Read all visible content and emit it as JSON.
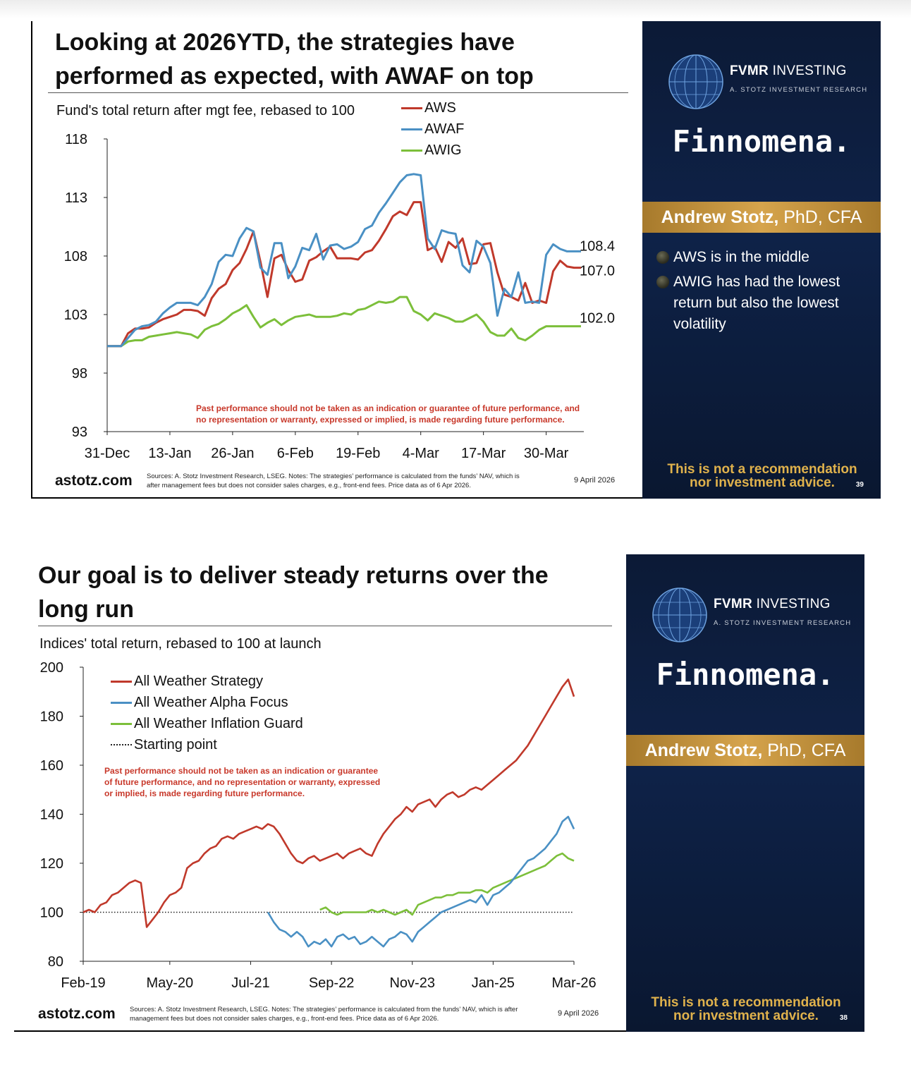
{
  "slides": [
    {
      "title_line1": "Looking at 2026YTD, the strategies have",
      "title_line2": "performed as expected, with AWAF on top",
      "subtitle": "Fund's total return after mgt fee, rebased to 100",
      "legend": [
        "AWS",
        "AWAF",
        "AWIG"
      ],
      "end_labels": [
        "108.4",
        "107.0",
        "102.0"
      ],
      "disclaimer_line1": "Past performance should not be taken as an indication or guarantee of future performance, and",
      "disclaimer_line2": "no representation or warranty, expressed or implied, is made regarding future performance.",
      "brand": "astotz.com",
      "sources_line1": "Sources: A. Stotz Investment Research, LSEG. Notes: The strategies’ performance is calculated from the funds’ NAV, which is",
      "sources_line2": "after management fees but does not consider sales charges, e.g., front-end fees. Price data as of 6 Apr 2026.",
      "date": "9 April 2026",
      "panel": {
        "logo_bold": "FVMR",
        "logo_light": "INVESTING",
        "logo_sub": "A. STOTZ INVESTMENT RESEARCH",
        "partner": "Finnomena.",
        "name_bold": "Andrew Stotz,",
        "name_rest": " PhD, CFA",
        "bullets": [
          "AWS is in the middle",
          "AWIG has had the lowest return but also the lowest volatility"
        ],
        "notice_line1": "This is not a recommendation",
        "notice_line2": "nor investment advice.",
        "page_number": "39"
      }
    },
    {
      "title_line1": "Our goal is to deliver steady returns over the",
      "title_line2": "long run",
      "subtitle": "Indices' total return, rebased to 100 at launch",
      "legend": [
        "All Weather Strategy",
        "All Weather Alpha Focus",
        "All Weather Inflation Guard",
        "Starting point"
      ],
      "disclaimer_line1": "Past performance should not be taken as an indication or guarantee",
      "disclaimer_line2": "of future performance, and no representation or warranty, expressed",
      "disclaimer_line3": "or implied, is made regarding future performance.",
      "brand": "astotz.com",
      "sources_line1": "Sources: A. Stotz Investment Research, LSEG. Notes: The strategies’ performance is calculated from the funds’ NAV, which is after",
      "sources_line2": "management fees but does not consider sales charges, e.g., front-end fees. Price data as of 6 Apr 2026.",
      "date": "9 April 2026",
      "panel": {
        "logo_bold": "FVMR",
        "logo_light": "INVESTING",
        "logo_sub": "A. STOTZ INVESTMENT RESEARCH",
        "partner": "Finnomena.",
        "name_bold": "Andrew Stotz,",
        "name_rest": " PhD, CFA",
        "notice_line1": "This is not a recommendation",
        "notice_line2": "nor investment advice.",
        "page_number": "38"
      }
    }
  ],
  "colors": {
    "red": "#c0392b",
    "blue": "#4a90c4",
    "green": "#7cbf3a",
    "disclaimer": "#c8382a",
    "gold": "#e0b24c"
  },
  "chart_data": [
    {
      "type": "line",
      "title": "Fund's total return after mgt fee, rebased to 100",
      "xlabel": "",
      "ylabel": "",
      "ylim": [
        93,
        118
      ],
      "yticks": [
        "93",
        "98",
        "103",
        "108",
        "113",
        "118"
      ],
      "xtick_labels": [
        "31-Dec",
        "13-Jan",
        "26-Jan",
        "6-Feb",
        "19-Feb",
        "4-Mar",
        "17-Mar",
        "30-Mar"
      ],
      "xtick_index": [
        0,
        9,
        18,
        27,
        36,
        45,
        54,
        63
      ],
      "grid": false,
      "series": [
        {
          "name": "AWS",
          "color": "#c0392b",
          "values": [
            100.3,
            100.3,
            100.3,
            101.4,
            101.8,
            101.8,
            101.9,
            102.3,
            102.6,
            102.8,
            103.0,
            103.4,
            103.4,
            103.3,
            102.9,
            104.4,
            105.2,
            105.6,
            106.8,
            107.4,
            108.6,
            110.1,
            107.5,
            104.5,
            107.8,
            108.1,
            106.8,
            105.8,
            106.0,
            107.6,
            107.9,
            108.4,
            108.8,
            107.8,
            107.8,
            107.8,
            107.7,
            108.3,
            108.5,
            109.3,
            110.3,
            111.4,
            111.8,
            111.5,
            112.6,
            112.6,
            108.5,
            108.8,
            107.5,
            109.2,
            108.7,
            109.5,
            107.3,
            107.4,
            109.0,
            109.1,
            106.6,
            104.7,
            104.5,
            104.2,
            105.7,
            104.0,
            104.2,
            104.0,
            106.7,
            107.6,
            107.1,
            107.0,
            107.0
          ]
        },
        {
          "name": "AWAF",
          "color": "#4a90c4",
          "values": [
            100.3,
            100.3,
            100.3,
            101.0,
            101.7,
            102.0,
            102.1,
            102.4,
            103.1,
            103.6,
            104.0,
            104.0,
            104.0,
            103.8,
            104.5,
            105.6,
            107.5,
            108.1,
            108.0,
            109.5,
            110.4,
            110.1,
            107.0,
            106.4,
            109.1,
            109.1,
            106.1,
            107.1,
            108.7,
            108.5,
            109.9,
            107.7,
            108.9,
            109.0,
            108.6,
            108.8,
            109.2,
            110.3,
            110.6,
            111.7,
            112.5,
            113.4,
            114.3,
            114.9,
            115.0,
            114.9,
            109.5,
            108.6,
            110.2,
            110.0,
            109.9,
            107.2,
            106.6,
            109.3,
            108.8,
            107.4,
            102.9,
            105.2,
            104.5,
            106.6,
            104.0,
            104.1,
            104.0,
            108.1,
            109.0,
            108.6,
            108.4,
            108.4,
            108.4
          ]
        },
        {
          "name": "AWIG",
          "color": "#7cbf3a",
          "values": [
            100.3,
            100.3,
            100.3,
            100.7,
            100.8,
            100.8,
            101.1,
            101.2,
            101.3,
            101.4,
            101.5,
            101.4,
            101.3,
            101.0,
            101.7,
            102.0,
            102.2,
            102.6,
            103.1,
            103.4,
            103.8,
            102.8,
            101.9,
            102.3,
            102.6,
            102.1,
            102.5,
            102.8,
            102.9,
            103.0,
            102.8,
            102.8,
            102.8,
            102.9,
            103.1,
            103.0,
            103.4,
            103.5,
            103.8,
            104.1,
            104.0,
            104.1,
            104.5,
            104.5,
            103.3,
            103.0,
            102.5,
            103.1,
            102.9,
            102.7,
            102.4,
            102.4,
            102.7,
            103.0,
            102.4,
            101.5,
            101.2,
            101.2,
            101.8,
            101.0,
            100.8,
            101.2,
            101.7,
            102.0,
            102.0,
            102.0,
            102.0,
            102.0,
            102.0
          ]
        }
      ],
      "end_labels": [
        108.4,
        107.0,
        102.0
      ]
    },
    {
      "type": "line",
      "title": "Indices' total return, rebased to 100 at launch",
      "xlabel": "",
      "ylabel": "",
      "ylim": [
        80,
        200
      ],
      "yticks": [
        "80",
        "100",
        "120",
        "140",
        "160",
        "180",
        "200"
      ],
      "xtick_labels": [
        "Feb-19",
        "May-20",
        "Jul-21",
        "Sep-22",
        "Nov-23",
        "Jan-25",
        "Mar-26"
      ],
      "xtick_month": [
        0,
        15,
        29,
        43,
        57,
        71,
        85
      ],
      "grid": false,
      "reference_line": {
        "name": "Starting point",
        "value": 100
      },
      "series": [
        {
          "name": "All Weather Strategy",
          "color": "#c0392b",
          "month": [
            0,
            1,
            2,
            3,
            4,
            5,
            6,
            7,
            8,
            9,
            10,
            11,
            12,
            13,
            14,
            15,
            16,
            17,
            18,
            19,
            20,
            21,
            22,
            23,
            24,
            25,
            26,
            27,
            28,
            29,
            30,
            31,
            32,
            33,
            34,
            35,
            36,
            37,
            38,
            39,
            40,
            41,
            42,
            43,
            44,
            45,
            46,
            47,
            48,
            49,
            50,
            51,
            52,
            53,
            54,
            55,
            56,
            57,
            58,
            59,
            60,
            61,
            62,
            63,
            64,
            65,
            66,
            67,
            68,
            69,
            70,
            71,
            72,
            73,
            74,
            75,
            76,
            77,
            78,
            79,
            80,
            81,
            82,
            83,
            84,
            85
          ],
          "values": [
            100,
            101,
            100,
            103,
            104,
            107,
            108,
            110,
            112,
            113,
            112,
            94,
            97,
            100,
            104,
            107,
            108,
            110,
            118,
            120,
            121,
            124,
            126,
            127,
            130,
            131,
            130,
            132,
            133,
            134,
            135,
            134,
            136,
            135,
            132,
            128,
            124,
            121,
            120,
            122,
            123,
            121,
            122,
            123,
            124,
            122,
            124,
            125,
            126,
            124,
            123,
            128,
            132,
            135,
            138,
            140,
            143,
            141,
            144,
            145,
            146,
            143,
            146,
            148,
            149,
            147,
            148,
            150,
            151,
            150,
            152,
            154,
            156,
            158,
            160,
            162,
            165,
            168,
            172,
            176,
            180,
            184,
            188,
            192,
            195,
            188
          ]
        },
        {
          "name": "All Weather Alpha Focus",
          "color": "#4a90c4",
          "month": [
            32,
            33,
            34,
            35,
            36,
            37,
            38,
            39,
            40,
            41,
            42,
            43,
            44,
            45,
            46,
            47,
            48,
            49,
            50,
            51,
            52,
            53,
            54,
            55,
            56,
            57,
            58,
            59,
            60,
            61,
            62,
            63,
            64,
            65,
            66,
            67,
            68,
            69,
            70,
            71,
            72,
            73,
            74,
            75,
            76,
            77,
            78,
            79,
            80,
            81,
            82,
            83,
            84,
            85
          ],
          "values": [
            100,
            96,
            93,
            92,
            90,
            92,
            90,
            86,
            88,
            87,
            89,
            86,
            90,
            91,
            89,
            90,
            87,
            88,
            90,
            88,
            86,
            89,
            90,
            92,
            91,
            88,
            92,
            94,
            96,
            98,
            100,
            101,
            102,
            103,
            104,
            105,
            104,
            107,
            103,
            107,
            108,
            110,
            112,
            115,
            118,
            121,
            122,
            124,
            126,
            129,
            132,
            137,
            139,
            134
          ]
        },
        {
          "name": "All Weather Inflation Guard",
          "color": "#7cbf3a",
          "month": [
            41,
            42,
            43,
            44,
            45,
            46,
            47,
            48,
            49,
            50,
            51,
            52,
            53,
            54,
            55,
            56,
            57,
            58,
            59,
            60,
            61,
            62,
            63,
            64,
            65,
            66,
            67,
            68,
            69,
            70,
            71,
            72,
            73,
            74,
            75,
            76,
            77,
            78,
            79,
            80,
            81,
            82,
            83,
            84,
            85
          ],
          "values": [
            101,
            102,
            100,
            99,
            100,
            100,
            100,
            100,
            100,
            101,
            100,
            101,
            100,
            99,
            100,
            101,
            99,
            103,
            104,
            105,
            106,
            106,
            107,
            107,
            108,
            108,
            108,
            109,
            109,
            108,
            110,
            111,
            112,
            113,
            114,
            115,
            116,
            117,
            118,
            119,
            121,
            123,
            124,
            122,
            121
          ]
        }
      ]
    }
  ]
}
